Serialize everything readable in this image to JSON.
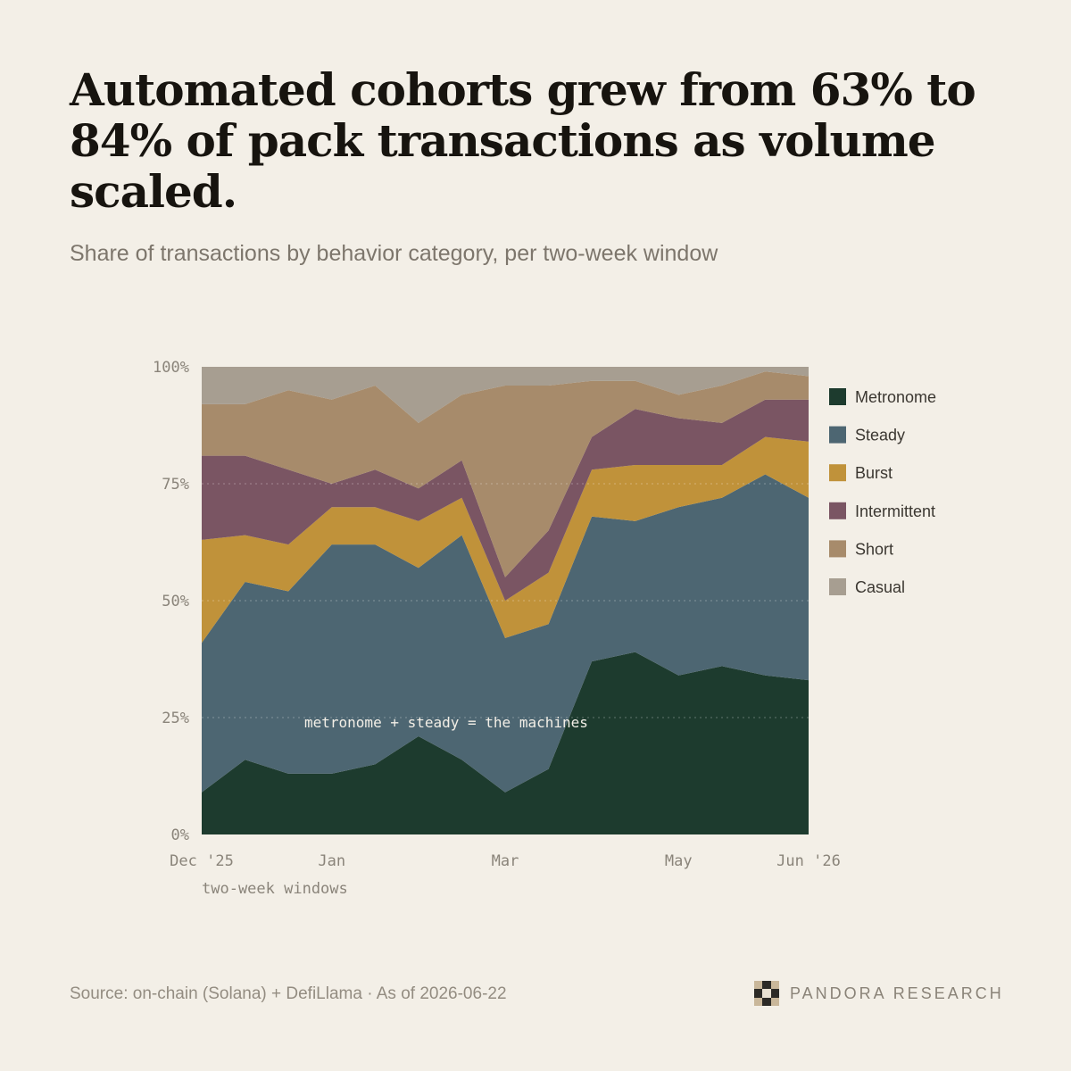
{
  "title": "Automated cohorts grew from 63% to 84% of pack transactions as volume scaled.",
  "subtitle": "Share of transactions by behavior category, per two-week window",
  "source": "Source: on-chain (Solana) + DefiLlama · As of 2026-06-22",
  "brand": {
    "name": "PANDORA RESEARCH",
    "logo_icon": "checker-icon"
  },
  "chart_data": {
    "type": "area",
    "stacked": true,
    "normalized": true,
    "x": [
      0,
      1,
      2,
      3,
      4,
      5,
      6,
      7,
      8,
      9,
      10,
      11,
      12,
      13,
      14
    ],
    "xlim": [
      0,
      14
    ],
    "x_ticks": [
      {
        "pos": 0,
        "label": "Dec '25"
      },
      {
        "pos": 3,
        "label": "Jan"
      },
      {
        "pos": 7,
        "label": "Mar"
      },
      {
        "pos": 11,
        "label": "May"
      },
      {
        "pos": 14,
        "label": "Jun '26"
      }
    ],
    "xlabel": "two-week windows",
    "ylabel": "",
    "ylim": [
      0,
      100
    ],
    "y_ticks": [
      "0%",
      "25%",
      "50%",
      "75%",
      "100%"
    ],
    "grid": "horizontal dotted",
    "legend_position": "right",
    "annotation": "metronome + steady = the machines",
    "series": [
      {
        "name": "Metronome",
        "color": "#1d3b2e",
        "values": [
          9,
          16,
          13,
          13,
          15,
          21,
          16,
          9,
          14,
          37,
          39,
          34,
          36,
          34,
          33
        ]
      },
      {
        "name": "Steady",
        "color": "#4d6672",
        "values": [
          32,
          38,
          39,
          49,
          47,
          36,
          48,
          33,
          31,
          31,
          28,
          36,
          36,
          43,
          39
        ]
      },
      {
        "name": "Burst",
        "color": "#c0923a",
        "values": [
          22,
          10,
          10,
          8,
          8,
          10,
          8,
          8,
          11,
          10,
          12,
          9,
          7,
          8,
          12
        ]
      },
      {
        "name": "Intermittent",
        "color": "#7a5563",
        "values": [
          18,
          17,
          16,
          5,
          8,
          7,
          8,
          5,
          9,
          7,
          12,
          10,
          9,
          8,
          9
        ]
      },
      {
        "name": "Short",
        "color": "#a78b6b",
        "values": [
          11,
          11,
          17,
          18,
          18,
          14,
          14,
          41,
          31,
          12,
          6,
          5,
          8,
          6,
          5
        ]
      },
      {
        "name": "Casual",
        "color": "#a79e91",
        "values": [
          8,
          8,
          5,
          7,
          4,
          12,
          6,
          4,
          4,
          3,
          3,
          6,
          4,
          1,
          2
        ]
      }
    ]
  }
}
